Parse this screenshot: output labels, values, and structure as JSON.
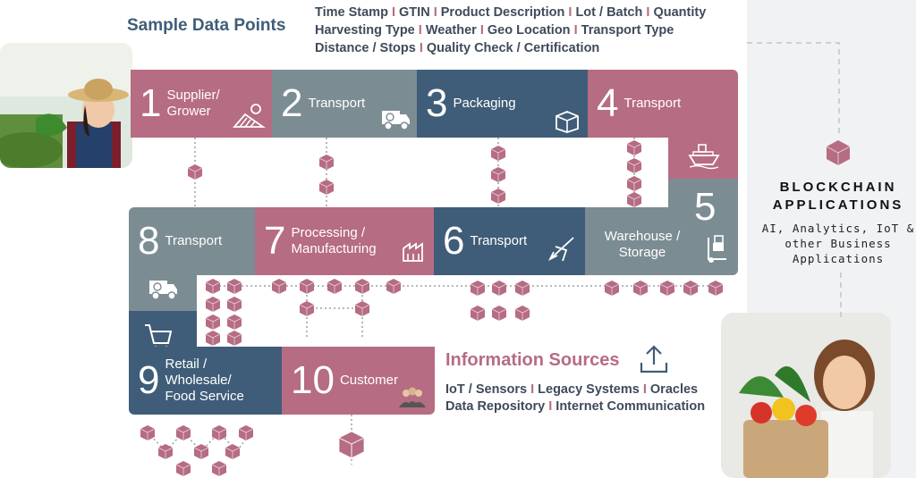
{
  "sample_header": "Sample Data Points",
  "data_fields": {
    "line1": [
      "Time Stamp",
      "GTIN",
      "Product Description",
      "Lot / Batch",
      "Quantity"
    ],
    "line2": [
      "Harvesting Type",
      "Weather",
      "Geo Location",
      "Transport Type"
    ],
    "line3": [
      "Distance / Stops",
      "Quality Check / Certification"
    ]
  },
  "steps": [
    {
      "num": "1",
      "label": "Supplier/ Grower",
      "icon": "farm-field-icon"
    },
    {
      "num": "2",
      "label": "Transport",
      "icon": "delivery-truck-icon"
    },
    {
      "num": "3",
      "label": "Packaging",
      "icon": "package-box-icon"
    },
    {
      "num": "4",
      "label": "Transport",
      "icon": "cargo-ship-icon"
    },
    {
      "num": "5",
      "label": "",
      "icon": ""
    },
    {
      "num": "6",
      "label": "Transport",
      "icon": "airplane-icon"
    },
    {
      "num": "7",
      "label": "Processing / Manufacturing",
      "icon": "factory-icon"
    },
    {
      "num": "8",
      "label": "Transport",
      "icon": "clock-truck-icon"
    },
    {
      "num": "9",
      "label": "Retail / Wholesale/ Food Service",
      "icon": "shopping-cart-icon"
    },
    {
      "num": "10",
      "label": "Customer",
      "icon": "customers-icon"
    }
  ],
  "warehouse_label": "Warehouse / Storage",
  "info_sources": {
    "title": "Information Sources",
    "line1": [
      "IoT / Sensors",
      "Legacy Systems",
      "Oracles"
    ],
    "line2": [
      "Data Repository",
      "Internet Communication"
    ]
  },
  "blockchain": {
    "title_line1": "BLOCKCHAIN",
    "title_line2": "APPLICATIONS",
    "sub_line1": "AI, Analytics, IoT &",
    "sub_line2": "other Business",
    "sub_line3": "Applications"
  },
  "separator": "I",
  "colors": {
    "pink": "#b66c82",
    "grey": "#7c8c93",
    "navy": "#3f5d78",
    "header": "#3f5d78"
  }
}
